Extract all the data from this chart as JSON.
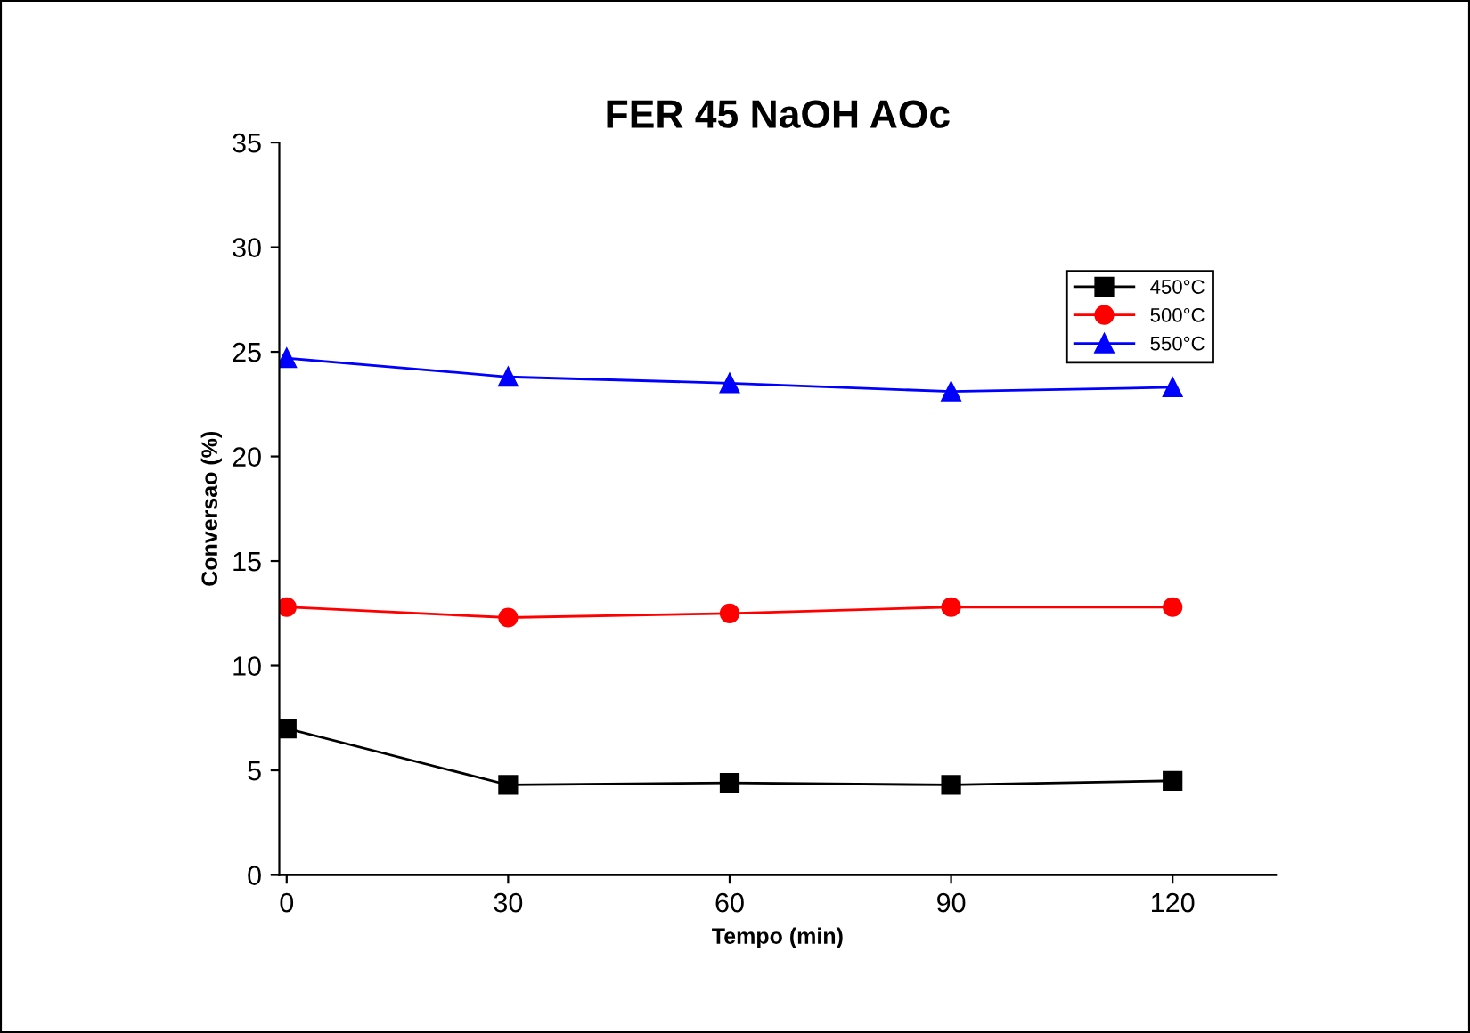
{
  "chart_data": {
    "type": "line",
    "title": "FER 45 NaOH AOc",
    "xlabel": "Tempo (min)",
    "ylabel": "Conversao (%)",
    "x": [
      0,
      30,
      60,
      90,
      120
    ],
    "series": [
      {
        "name": "450°C",
        "color": "#000000",
        "marker": "square",
        "values": [
          7.0,
          4.3,
          4.4,
          4.3,
          4.5
        ]
      },
      {
        "name": "500°C",
        "color": "#ff0000",
        "marker": "circle",
        "values": [
          12.8,
          12.3,
          12.5,
          12.8,
          12.8
        ]
      },
      {
        "name": "550°C",
        "color": "#0000ff",
        "marker": "triangle",
        "values": [
          24.7,
          23.8,
          23.5,
          23.1,
          23.3
        ]
      }
    ],
    "xlim": [
      -1,
      134
    ],
    "xticks": [
      0,
      30,
      60,
      90,
      120
    ],
    "ylim": [
      0,
      35
    ],
    "yticks": [
      0,
      5,
      10,
      15,
      20,
      25,
      30,
      35
    ],
    "grid": false,
    "legend": "top right",
    "line_style": "solid"
  }
}
